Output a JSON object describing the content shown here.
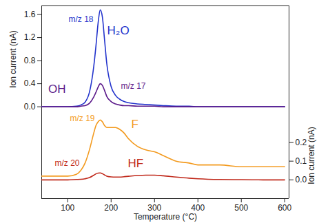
{
  "chart_data": [
    {
      "type": "line",
      "y_label": "Ion current (nA)",
      "tick_labels": "y",
      "xlim": [
        40,
        610
      ],
      "ylim": [
        -0.1,
        1.75
      ],
      "yticks": [
        {
          "value": 0,
          "label": "0.0"
        },
        0.4,
        0.8,
        1.2,
        1.6
      ],
      "x": [
        40,
        60,
        80,
        100,
        120,
        130,
        140,
        150,
        160,
        165,
        170,
        175,
        180,
        185,
        190,
        200,
        210,
        220,
        230,
        240,
        260,
        280,
        300,
        320,
        350,
        380,
        400,
        450,
        500,
        550,
        600
      ],
      "series": [
        {
          "name": "H₂O",
          "label": "m/z 18",
          "color": "#2233cc",
          "values": [
            0,
            0,
            0,
            0,
            0.01,
            0.03,
            0.08,
            0.25,
            0.7,
            1.05,
            1.45,
            1.68,
            1.55,
            1.15,
            0.75,
            0.35,
            0.2,
            0.13,
            0.09,
            0.07,
            0.05,
            0.04,
            0.03,
            0.02,
            0.01,
            0.01,
            0,
            0,
            0,
            0,
            0
          ]
        },
        {
          "name": "OH",
          "label": "m/z 17",
          "color": "#5b1a8a",
          "values": [
            0,
            0,
            0,
            0,
            0,
            0.01,
            0.02,
            0.06,
            0.17,
            0.25,
            0.34,
            0.4,
            0.37,
            0.28,
            0.18,
            0.09,
            0.05,
            0.03,
            0.02,
            0.02,
            0.01,
            0.01,
            0.01,
            0,
            0,
            0,
            0,
            0,
            0,
            0,
            0
          ]
        }
      ]
    },
    {
      "type": "line",
      "x_label": "Temperature (°C)",
      "y2_label": "Ion current (nA)",
      "xlim": [
        40,
        610
      ],
      "xticks": [
        100,
        200,
        300,
        400,
        500,
        600
      ],
      "y2lim": [
        -0.1,
        0.36
      ],
      "y2ticks": [
        {
          "value": 0,
          "label": "0.0"
        },
        0.1,
        0.2
      ],
      "x": [
        40,
        60,
        80,
        100,
        120,
        130,
        140,
        150,
        160,
        165,
        170,
        175,
        180,
        185,
        190,
        200,
        210,
        220,
        230,
        240,
        260,
        280,
        300,
        320,
        350,
        380,
        400,
        450,
        500,
        550,
        600
      ],
      "series": [
        {
          "name": "F",
          "label": "m/z 19",
          "color": "#f39a1e",
          "axis": "y2",
          "values": [
            0.02,
            0.02,
            0.02,
            0.02,
            0.03,
            0.05,
            0.09,
            0.16,
            0.25,
            0.29,
            0.31,
            0.32,
            0.31,
            0.29,
            0.28,
            0.28,
            0.28,
            0.27,
            0.25,
            0.22,
            0.18,
            0.16,
            0.15,
            0.13,
            0.1,
            0.09,
            0.08,
            0.08,
            0.07,
            0.07,
            0.07
          ]
        },
        {
          "name": "HF",
          "label": "m/z 20",
          "color": "#c0281a",
          "axis": "y2",
          "values": [
            0,
            0,
            0,
            0,
            0.002,
            0.003,
            0.006,
            0.012,
            0.025,
            0.032,
            0.036,
            0.037,
            0.033,
            0.026,
            0.02,
            0.016,
            0.015,
            0.015,
            0.017,
            0.019,
            0.023,
            0.025,
            0.025,
            0.022,
            0.015,
            0.009,
            0.006,
            0.002,
            0.001,
            0,
            0
          ]
        }
      ]
    }
  ]
}
